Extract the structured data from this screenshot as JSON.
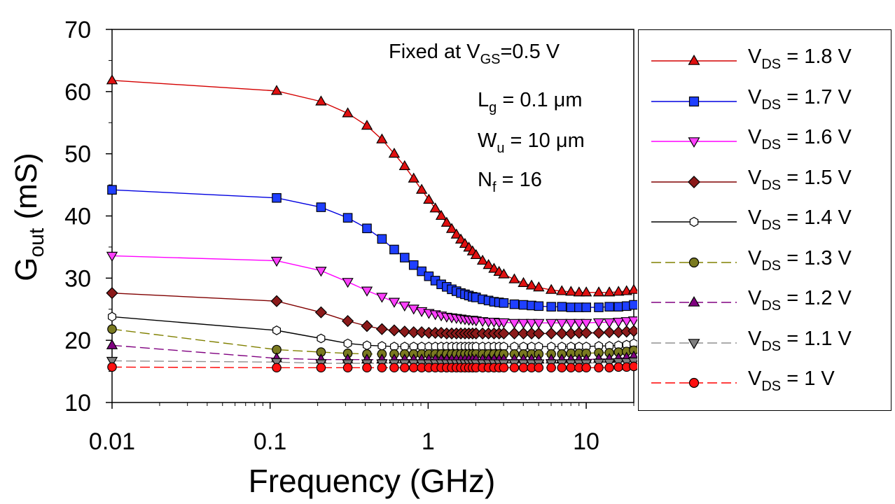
{
  "chart_data": {
    "type": "line",
    "x_scale": "log",
    "xlim": [
      0.01,
      20
    ],
    "ylim": [
      10,
      70
    ],
    "xlabel": "Frequency  (GHz)",
    "ylabel_main": "G",
    "ylabel_sub": "out",
    "ylabel_unit": "  (mS)",
    "x_ticks": [
      0.01,
      0.1,
      1,
      10
    ],
    "x_tick_labels": [
      "0.01",
      "0.1",
      "1",
      "10"
    ],
    "y_ticks": [
      10,
      20,
      30,
      40,
      50,
      60,
      70
    ],
    "y_tick_labels": [
      "10",
      "20",
      "30",
      "40",
      "50",
      "60",
      "70"
    ],
    "grid": false,
    "legend_position": "right",
    "annotations": {
      "fixed_prefix": "Fixed at V",
      "fixed_sub": "GS",
      "fixed_suffix": "=0.5 V",
      "lg_main": "L",
      "lg_sub": "g",
      "lg_value": " = 0.1 μm",
      "wu_main": "W",
      "wu_sub": "u",
      "wu_value": " = 10 μm",
      "nf_main": "N",
      "nf_sub": "f",
      "nf_value": " = 16"
    },
    "legend_prefix": "V",
    "legend_sub": "DS",
    "x": [
      0.01,
      0.11,
      0.21,
      0.31,
      0.41,
      0.51,
      0.61,
      0.71,
      0.81,
      0.91,
      1.01,
      1.11,
      1.21,
      1.31,
      1.41,
      1.51,
      1.61,
      1.71,
      1.81,
      1.91,
      2.01,
      2.21,
      2.41,
      2.61,
      2.81,
      3.01,
      3.51,
      4.01,
      4.51,
      5.01,
      6.01,
      7.01,
      8.01,
      9.01,
      10.01,
      12.01,
      14.01,
      16.01,
      18.01,
      20
    ],
    "series": [
      {
        "name": " = 1.8 V",
        "color": "#d40000",
        "marker": "triangle-up",
        "fill": "#e01010",
        "dashed": false,
        "values": [
          61.8,
          60.1,
          58.4,
          56.5,
          54.5,
          52.3,
          50.0,
          48.0,
          46.0,
          44.2,
          42.6,
          41.2,
          40.0,
          38.9,
          37.9,
          37.0,
          36.2,
          35.5,
          34.9,
          34.3,
          33.7,
          32.8,
          32.1,
          31.5,
          31.0,
          30.6,
          29.8,
          29.2,
          28.8,
          28.5,
          28.1,
          27.9,
          27.8,
          27.7,
          27.7,
          27.7,
          27.7,
          27.8,
          27.9,
          28.1
        ]
      },
      {
        "name": " = 1.7 V",
        "color": "#0000e0",
        "marker": "square",
        "fill": "#1f3fff",
        "dashed": false,
        "values": [
          44.2,
          42.9,
          41.4,
          39.7,
          38.0,
          36.3,
          34.6,
          33.3,
          32.1,
          31.1,
          30.3,
          29.6,
          29.0,
          28.6,
          28.2,
          27.9,
          27.6,
          27.4,
          27.2,
          27.0,
          26.9,
          26.6,
          26.4,
          26.2,
          26.1,
          26.0,
          25.8,
          25.7,
          25.6,
          25.5,
          25.4,
          25.4,
          25.3,
          25.3,
          25.3,
          25.3,
          25.4,
          25.4,
          25.5,
          25.7
        ]
      },
      {
        "name": " = 1.6 V",
        "color": "#ff00ff",
        "marker": "triangle-down",
        "fill": "#ff40ff",
        "dashed": false,
        "values": [
          33.6,
          32.8,
          31.2,
          29.4,
          28.0,
          27.0,
          26.2,
          25.6,
          25.1,
          24.7,
          24.4,
          24.2,
          24.0,
          23.8,
          23.7,
          23.6,
          23.5,
          23.4,
          23.3,
          23.3,
          23.2,
          23.1,
          23.0,
          23.0,
          22.9,
          22.9,
          22.8,
          22.8,
          22.8,
          22.8,
          22.8,
          22.8,
          22.8,
          22.8,
          22.8,
          22.9,
          22.9,
          23.0,
          23.1,
          23.2
        ]
      },
      {
        "name": " = 1.5 V",
        "color": "#800000",
        "marker": "diamond",
        "fill": "#8b1a1a",
        "dashed": false,
        "values": [
          27.6,
          26.3,
          24.5,
          23.1,
          22.3,
          21.8,
          21.6,
          21.4,
          21.3,
          21.3,
          21.2,
          21.2,
          21.2,
          21.1,
          21.1,
          21.1,
          21.1,
          21.1,
          21.1,
          21.1,
          21.1,
          21.1,
          21.1,
          21.1,
          21.1,
          21.1,
          21.1,
          21.1,
          21.1,
          21.1,
          21.1,
          21.1,
          21.1,
          21.2,
          21.2,
          21.2,
          21.3,
          21.3,
          21.4,
          21.5
        ]
      },
      {
        "name": " = 1.4 V",
        "color": "#000000",
        "marker": "hexagon",
        "fill": "#ffffff",
        "dashed": false,
        "values": [
          23.8,
          21.6,
          20.3,
          19.5,
          19.2,
          19.1,
          19.0,
          19.0,
          19.0,
          19.0,
          19.0,
          19.0,
          19.0,
          19.0,
          19.0,
          19.0,
          19.0,
          19.0,
          19.0,
          19.0,
          19.0,
          19.0,
          19.0,
          19.0,
          19.0,
          19.0,
          19.0,
          19.0,
          19.0,
          19.0,
          19.0,
          19.0,
          19.0,
          19.0,
          19.0,
          19.1,
          19.1,
          19.2,
          19.3,
          19.5
        ]
      },
      {
        "name": " = 1.3 V",
        "color": "#808000",
        "marker": "circle",
        "fill": "#7a7a20",
        "dashed": true,
        "values": [
          21.8,
          18.5,
          18.1,
          17.9,
          17.8,
          17.8,
          17.8,
          17.8,
          17.8,
          17.8,
          17.8,
          17.8,
          17.8,
          17.8,
          17.8,
          17.8,
          17.8,
          17.8,
          17.8,
          17.8,
          17.8,
          17.8,
          17.8,
          17.8,
          17.8,
          17.8,
          17.8,
          17.8,
          17.8,
          17.8,
          17.8,
          17.8,
          17.9,
          17.9,
          17.9,
          18.0,
          18.0,
          18.1,
          18.2,
          18.4
        ]
      },
      {
        "name": " = 1.2 V",
        "color": "#800080",
        "marker": "triangle-up",
        "fill": "#800080",
        "dashed": true,
        "values": [
          19.2,
          17.1,
          16.9,
          16.9,
          16.9,
          16.9,
          16.9,
          16.9,
          16.9,
          16.9,
          16.9,
          16.9,
          16.9,
          16.9,
          16.9,
          16.9,
          16.9,
          16.9,
          16.9,
          16.9,
          16.9,
          16.9,
          16.9,
          16.9,
          16.9,
          16.9,
          16.9,
          16.9,
          16.9,
          16.9,
          16.9,
          16.9,
          16.9,
          16.9,
          16.9,
          17.0,
          17.0,
          17.1,
          17.2,
          17.4
        ]
      },
      {
        "name": " = 1.1 V",
        "color": "#909090",
        "marker": "triangle-down",
        "fill": "#808080",
        "dashed": true,
        "values": [
          16.7,
          16.5,
          16.3,
          16.3,
          16.3,
          16.3,
          16.3,
          16.3,
          16.3,
          16.3,
          16.3,
          16.3,
          16.3,
          16.3,
          16.3,
          16.3,
          16.3,
          16.3,
          16.3,
          16.3,
          16.3,
          16.3,
          16.3,
          16.3,
          16.3,
          16.3,
          16.3,
          16.3,
          16.3,
          16.3,
          16.3,
          16.3,
          16.3,
          16.3,
          16.3,
          16.4,
          16.4,
          16.5,
          16.5,
          16.6
        ]
      },
      {
        "name": " = 1 V",
        "color": "#ff0000",
        "marker": "circle",
        "fill": "#ff1010",
        "dashed": true,
        "values": [
          15.7,
          15.6,
          15.6,
          15.6,
          15.6,
          15.6,
          15.6,
          15.6,
          15.6,
          15.6,
          15.6,
          15.6,
          15.6,
          15.6,
          15.6,
          15.6,
          15.6,
          15.6,
          15.6,
          15.6,
          15.6,
          15.6,
          15.6,
          15.6,
          15.6,
          15.6,
          15.6,
          15.6,
          15.6,
          15.6,
          15.6,
          15.6,
          15.6,
          15.6,
          15.6,
          15.6,
          15.6,
          15.7,
          15.7,
          15.8
        ]
      }
    ]
  }
}
